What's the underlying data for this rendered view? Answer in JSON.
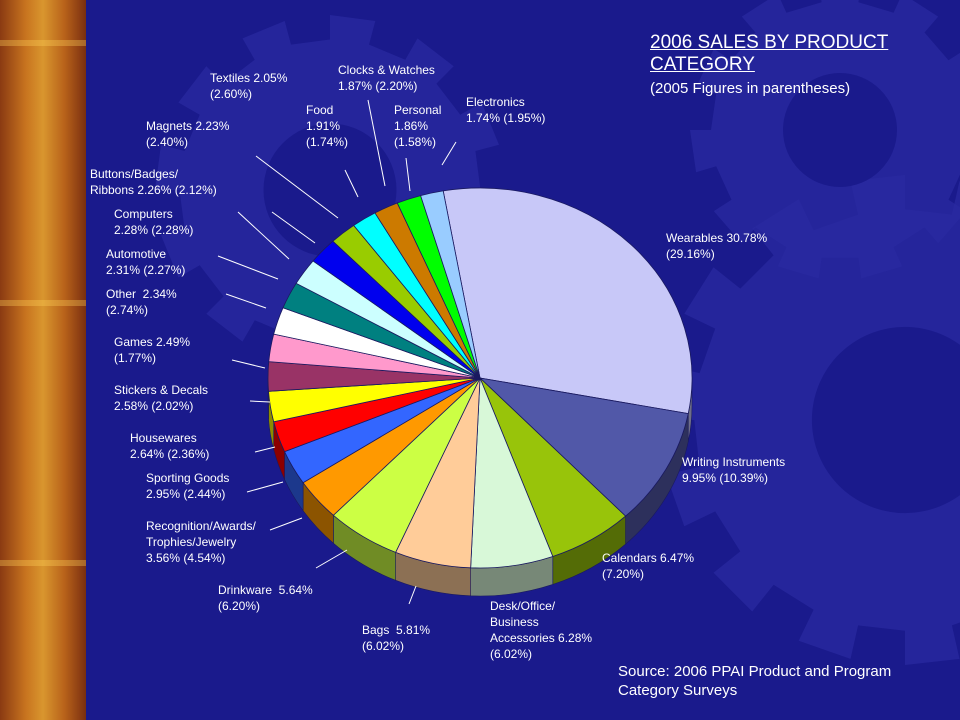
{
  "title": "2006 SALES BY PRODUCT CATEGORY",
  "subtitle": "(2005 Figures in parentheses)",
  "source": "Source: 2006 PPAI Product and Program Category Surveys",
  "chart_data": {
    "type": "pie",
    "title": "2006 SALES BY PRODUCT CATEGORY",
    "subtitle": "(2005 Figures in parentheses)",
    "series": [
      {
        "name": "2006",
        "unit": "%"
      },
      {
        "name": "2005",
        "unit": "%"
      }
    ],
    "slices": [
      {
        "category": "Wearables",
        "label": "Wearables 30.78%\n(29.16%)",
        "value_2006": 30.78,
        "value_2005": 29.16,
        "color": "#c8c8f8"
      },
      {
        "category": "Writing Instruments",
        "label": "Writing Instruments\n9.95% (10.39%)",
        "value_2006": 9.95,
        "value_2005": 10.39,
        "color": "#5158a8"
      },
      {
        "category": "Calendars",
        "label": "Calendars 6.47%\n(7.20%)",
        "value_2006": 6.47,
        "value_2005": 7.2,
        "color": "#98c40a"
      },
      {
        "category": "Desk/Office/Business Accessories",
        "label": "Desk/Office/\nBusiness\nAccessories 6.28%\n(6.02%)",
        "value_2006": 6.28,
        "value_2005": 6.02,
        "color": "#d8f8d8"
      },
      {
        "category": "Bags",
        "label": "Bags  5.81%\n(6.02%)",
        "value_2006": 5.81,
        "value_2005": 6.02,
        "color": "#ffcc99"
      },
      {
        "category": "Drinkware",
        "label": "Drinkware  5.64%\n(6.20%)",
        "value_2006": 5.64,
        "value_2005": 6.2,
        "color": "#ccff44"
      },
      {
        "category": "Recognition/Awards/Trophies/Jewelry",
        "label": "Recognition/Awards/\nTrophies/Jewelry\n3.56% (4.54%)",
        "value_2006": 3.56,
        "value_2005": 4.54,
        "color": "#ff9900"
      },
      {
        "category": "Sporting Goods",
        "label": "Sporting Goods\n2.95% (2.44%)",
        "value_2006": 2.95,
        "value_2005": 2.44,
        "color": "#3366ff"
      },
      {
        "category": "Housewares",
        "label": "Housewares\n2.64% (2.36%)",
        "value_2006": 2.64,
        "value_2005": 2.36,
        "color": "#ff0000"
      },
      {
        "category": "Stickers & Decals",
        "label": "Stickers & Decals\n2.58% (2.02%)",
        "value_2006": 2.58,
        "value_2005": 2.02,
        "color": "#ffff00"
      },
      {
        "category": "Games",
        "label": "Games 2.49%\n(1.77%)",
        "value_2006": 2.49,
        "value_2005": 1.77,
        "color": "#993366"
      },
      {
        "category": "Other",
        "label": "Other  2.34%\n(2.74%)",
        "value_2006": 2.34,
        "value_2005": 2.74,
        "color": "#ff99cc"
      },
      {
        "category": "Automotive",
        "label": "Automotive\n2.31% (2.27%)",
        "value_2006": 2.31,
        "value_2005": 2.27,
        "color": "#ffffff"
      },
      {
        "category": "Computers",
        "label": "Computers\n2.28% (2.28%)",
        "value_2006": 2.28,
        "value_2005": 2.28,
        "color": "#008080"
      },
      {
        "category": "Buttons/Badges/Ribbons",
        "label": "Buttons/Badges/\nRibbons 2.26% (2.12%)",
        "value_2006": 2.26,
        "value_2005": 2.12,
        "color": "#ccffff"
      },
      {
        "category": "Magnets",
        "label": "Magnets 2.23%\n(2.40%)",
        "value_2006": 2.23,
        "value_2005": 2.4,
        "color": "#0000ee"
      },
      {
        "category": "Textiles",
        "label": "Textiles 2.05%\n(2.60%)",
        "value_2006": 2.05,
        "value_2005": 2.6,
        "color": "#99cc00"
      },
      {
        "category": "Food",
        "label": "Food\n1.91%\n(1.74%)",
        "value_2006": 1.91,
        "value_2005": 1.74,
        "color": "#00ffff"
      },
      {
        "category": "Clocks & Watches",
        "label": "Clocks & Watches\n1.87% (2.20%)",
        "value_2006": 1.87,
        "value_2005": 2.2,
        "color": "#cc7a00"
      },
      {
        "category": "Personal",
        "label": "Personal\n1.86%\n(1.58%)",
        "value_2006": 1.86,
        "value_2005": 1.58,
        "color": "#00ff00"
      },
      {
        "category": "Electronics",
        "label": "Electronics\n1.74% (1.95%)",
        "value_2006": 1.74,
        "value_2005": 1.95,
        "color": "#99ccff"
      }
    ]
  }
}
